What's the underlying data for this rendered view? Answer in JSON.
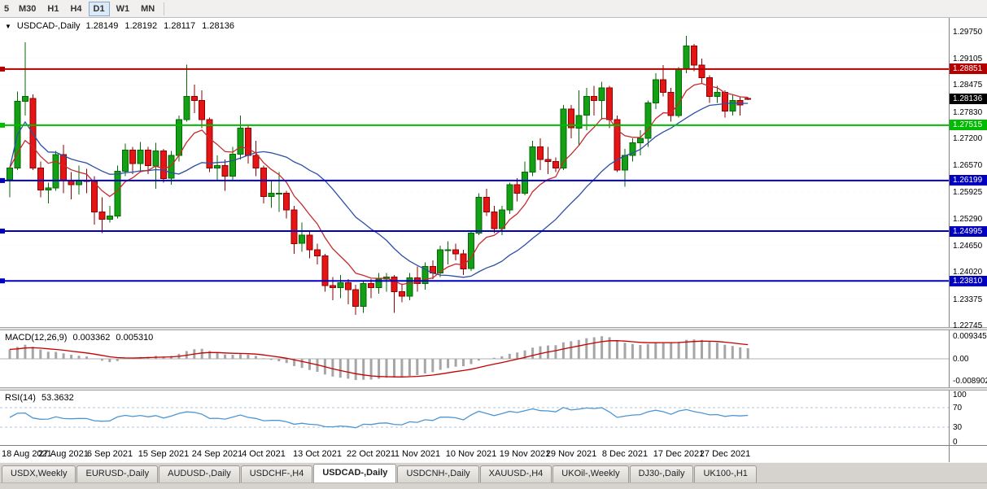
{
  "icons": {
    "dropdown": "▼"
  },
  "toolbar": {
    "timeframes": [
      "5",
      "M30",
      "H1",
      "H4",
      "D1",
      "W1",
      "MN"
    ],
    "active_timeframe": "D1"
  },
  "chart": {
    "title": "USDCAD-,Daily",
    "ohlc": "1.28149 1.28192 1.28117 1.28136"
  },
  "chart_data": {
    "type": "candlestick",
    "symbol": "USDCAD-",
    "timeframe": "Daily",
    "y_range": [
      1.2271,
      1.3007
    ],
    "y_ticks": [
      "1.29750",
      "1.29105",
      "1.28475",
      "1.27830",
      "1.27200",
      "1.26570",
      "1.25925",
      "1.25290",
      "1.24650",
      "1.24020",
      "1.23375",
      "1.22745"
    ],
    "hlines": [
      {
        "price": 1.28851,
        "label": "1.28851",
        "color": "#B50000"
      },
      {
        "price": 1.27515,
        "label": "1.27515",
        "color": "#00BB00"
      },
      {
        "price": 1.26199,
        "label": "1.26199",
        "color": "#0000BE"
      },
      {
        "price": 1.24995,
        "label": "1.24995",
        "color": "#0000BE"
      },
      {
        "price": 1.2381,
        "label": "1.23810",
        "color": "#0000BE"
      }
    ],
    "price_marker": {
      "price": 1.28136,
      "label": "1.28136",
      "color": "#000000"
    },
    "x_ticks": [
      {
        "index": 0,
        "label": "18 Aug 2021"
      },
      {
        "index": 7,
        "label": "27 Aug 2021"
      },
      {
        "index": 13,
        "label": "6 Sep 2021"
      },
      {
        "index": 20,
        "label": "15 Sep 2021"
      },
      {
        "index": 27,
        "label": "24 Sep 2021"
      },
      {
        "index": 33,
        "label": "4 Oct 2021"
      },
      {
        "index": 40,
        "label": "13 Oct 2021"
      },
      {
        "index": 47,
        "label": "22 Oct 2021"
      },
      {
        "index": 53,
        "label": "1 Nov 2021"
      },
      {
        "index": 60,
        "label": "10 Nov 2021"
      },
      {
        "index": 67,
        "label": "19 Nov 2021"
      },
      {
        "index": 73,
        "label": "29 Nov 2021"
      },
      {
        "index": 80,
        "label": "8 Dec 2021"
      },
      {
        "index": 87,
        "label": "17 Dec 2021"
      },
      {
        "index": 93,
        "label": "27 Dec 2021"
      }
    ],
    "candles": [
      [
        1.2622,
        1.2653,
        1.258,
        1.265
      ],
      [
        1.265,
        1.2832,
        1.2645,
        1.2808
      ],
      [
        1.2808,
        1.2949,
        1.2775,
        1.282
      ],
      [
        1.2815,
        1.2825,
        1.2645,
        1.265
      ],
      [
        1.265,
        1.2665,
        1.258,
        1.2597
      ],
      [
        1.2597,
        1.2615,
        1.2565,
        1.2602
      ],
      [
        1.2602,
        1.269,
        1.2595,
        1.2682
      ],
      [
        1.2682,
        1.2705,
        1.259,
        1.262
      ],
      [
        1.262,
        1.264,
        1.2575,
        1.261
      ],
      [
        1.261,
        1.2655,
        1.2587,
        1.262
      ],
      [
        1.262,
        1.2648,
        1.259,
        1.2618
      ],
      [
        1.2618,
        1.263,
        1.2515,
        1.2545
      ],
      [
        1.2545,
        1.258,
        1.2495,
        1.2528
      ],
      [
        1.2528,
        1.256,
        1.252,
        1.2535
      ],
      [
        1.2535,
        1.2655,
        1.253,
        1.2642
      ],
      [
        1.2642,
        1.2708,
        1.263,
        1.2692
      ],
      [
        1.2692,
        1.27,
        1.2635,
        1.266
      ],
      [
        1.266,
        1.2712,
        1.264,
        1.2692
      ],
      [
        1.2692,
        1.27,
        1.2635,
        1.2655
      ],
      [
        1.2655,
        1.271,
        1.26,
        1.269
      ],
      [
        1.269,
        1.2695,
        1.2615,
        1.2625
      ],
      [
        1.2625,
        1.269,
        1.261,
        1.268
      ],
      [
        1.268,
        1.2775,
        1.2665,
        1.2765
      ],
      [
        1.2765,
        1.2896,
        1.276,
        1.282
      ],
      [
        1.282,
        1.2848,
        1.278,
        1.281
      ],
      [
        1.281,
        1.2835,
        1.2745,
        1.2765
      ],
      [
        1.2765,
        1.277,
        1.264,
        1.265
      ],
      [
        1.265,
        1.268,
        1.262,
        1.2655
      ],
      [
        1.2655,
        1.267,
        1.2595,
        1.263
      ],
      [
        1.263,
        1.27,
        1.262,
        1.2683
      ],
      [
        1.2683,
        1.2775,
        1.267,
        1.2745
      ],
      [
        1.2745,
        1.275,
        1.266,
        1.268
      ],
      [
        1.268,
        1.2715,
        1.263,
        1.265
      ],
      [
        1.265,
        1.2655,
        1.2565,
        1.2582
      ],
      [
        1.2582,
        1.262,
        1.2555,
        1.259
      ],
      [
        1.259,
        1.264,
        1.2545,
        1.259
      ],
      [
        1.259,
        1.2595,
        1.253,
        1.255
      ],
      [
        1.255,
        1.256,
        1.2445,
        1.247
      ],
      [
        1.247,
        1.252,
        1.245,
        1.249
      ],
      [
        1.249,
        1.25,
        1.2435,
        1.2455
      ],
      [
        1.2455,
        1.247,
        1.242,
        1.244
      ],
      [
        1.244,
        1.2445,
        1.2355,
        1.237
      ],
      [
        1.237,
        1.239,
        1.2335,
        1.2365
      ],
      [
        1.2365,
        1.2395,
        1.234,
        1.2377
      ],
      [
        1.2377,
        1.2385,
        1.2325,
        1.236
      ],
      [
        1.236,
        1.2372,
        1.23,
        1.232
      ],
      [
        1.232,
        1.238,
        1.2305,
        1.2375
      ],
      [
        1.2375,
        1.2385,
        1.234,
        1.2365
      ],
      [
        1.2365,
        1.24,
        1.235,
        1.2385
      ],
      [
        1.2385,
        1.24,
        1.2355,
        1.239
      ],
      [
        1.239,
        1.2395,
        1.2305,
        1.2355
      ],
      [
        1.2355,
        1.2375,
        1.233,
        1.2345
      ],
      [
        1.2345,
        1.24,
        1.2335,
        1.2388
      ],
      [
        1.2388,
        1.2415,
        1.2355,
        1.2375
      ],
      [
        1.2375,
        1.2425,
        1.236,
        1.2415
      ],
      [
        1.2415,
        1.243,
        1.2385,
        1.24
      ],
      [
        1.24,
        1.2465,
        1.239,
        1.2455
      ],
      [
        1.2455,
        1.2475,
        1.242,
        1.2455
      ],
      [
        1.2455,
        1.247,
        1.243,
        1.2445
      ],
      [
        1.2445,
        1.2455,
        1.2395,
        1.241
      ],
      [
        1.241,
        1.25,
        1.2405,
        1.2495
      ],
      [
        1.2495,
        1.259,
        1.249,
        1.258
      ],
      [
        1.258,
        1.26,
        1.2535,
        1.2545
      ],
      [
        1.2545,
        1.256,
        1.2495,
        1.2505
      ],
      [
        1.2505,
        1.256,
        1.249,
        1.255
      ],
      [
        1.255,
        1.2615,
        1.254,
        1.261
      ],
      [
        1.261,
        1.2625,
        1.257,
        1.259
      ],
      [
        1.259,
        1.2665,
        1.2585,
        1.264
      ],
      [
        1.264,
        1.2715,
        1.263,
        1.27
      ],
      [
        1.27,
        1.272,
        1.2645,
        1.267
      ],
      [
        1.267,
        1.27,
        1.2635,
        1.2665
      ],
      [
        1.2665,
        1.2675,
        1.264,
        1.265
      ],
      [
        1.265,
        1.28,
        1.2645,
        1.279
      ],
      [
        1.279,
        1.28,
        1.272,
        1.2745
      ],
      [
        1.2745,
        1.2835,
        1.2705,
        1.2775
      ],
      [
        1.2775,
        1.284,
        1.274,
        1.282
      ],
      [
        1.282,
        1.2845,
        1.2775,
        1.281
      ],
      [
        1.281,
        1.2855,
        1.2765,
        1.284
      ],
      [
        1.284,
        1.2845,
        1.2745,
        1.2765
      ],
      [
        1.2765,
        1.2775,
        1.264,
        1.2645
      ],
      [
        1.2645,
        1.2695,
        1.2605,
        1.268
      ],
      [
        1.268,
        1.272,
        1.2665,
        1.271
      ],
      [
        1.271,
        1.274,
        1.268,
        1.272
      ],
      [
        1.272,
        1.281,
        1.27,
        1.2805
      ],
      [
        1.2805,
        1.2875,
        1.279,
        1.286
      ],
      [
        1.286,
        1.2895,
        1.282,
        1.283
      ],
      [
        1.283,
        1.284,
        1.276,
        1.2775
      ],
      [
        1.2775,
        1.289,
        1.277,
        1.2885
      ],
      [
        1.2885,
        1.2964,
        1.2875,
        1.294
      ],
      [
        1.294,
        1.2945,
        1.288,
        1.2895
      ],
      [
        1.2895,
        1.291,
        1.285,
        1.2865
      ],
      [
        1.2865,
        1.287,
        1.2805,
        1.282
      ],
      [
        1.282,
        1.2845,
        1.2805,
        1.283
      ],
      [
        1.283,
        1.2835,
        1.277,
        1.2785
      ],
      [
        1.2785,
        1.2825,
        1.2775,
        1.281
      ],
      [
        1.281,
        1.282,
        1.2775,
        1.28
      ],
      [
        1.28149,
        1.28192,
        1.28117,
        1.28136
      ]
    ],
    "colors": {
      "up_fill": "#14A014",
      "up_border": "#056805",
      "down_fill": "#E51515",
      "down_border": "#8F0000",
      "ma_fast": "#C62B2B",
      "ma_slow": "#2E4FA8"
    }
  },
  "macd": {
    "label": "MACD(12,26,9)",
    "values": "0.003362 0.005310",
    "axis_labels": [
      "0.009345",
      "0.00",
      "-0.008902"
    ],
    "histogram_color": "#A6A6A6",
    "signal_color": "#C40000"
  },
  "rsi": {
    "label": "RSI(14)",
    "value": "53.3632",
    "axis_labels": [
      "100",
      "70",
      "30",
      "0"
    ],
    "levels": [
      70,
      30
    ],
    "line_color": "#4E96D2",
    "level_color": "#AFC6DB"
  },
  "tabs": [
    {
      "label": "USDX,Weekly",
      "active": false
    },
    {
      "label": "EURUSD-,Daily",
      "active": false
    },
    {
      "label": "AUDUSD-,Daily",
      "active": false
    },
    {
      "label": "USDCHF-,H4",
      "active": false
    },
    {
      "label": "USDCAD-,Daily",
      "active": true
    },
    {
      "label": "USDCNH-,Daily",
      "active": false
    },
    {
      "label": "XAUUSD-,H4",
      "active": false
    },
    {
      "label": "UKOil-,Weekly",
      "active": false
    },
    {
      "label": "DJ30-,Daily",
      "active": false
    },
    {
      "label": "UK100-,H1",
      "active": false
    }
  ]
}
